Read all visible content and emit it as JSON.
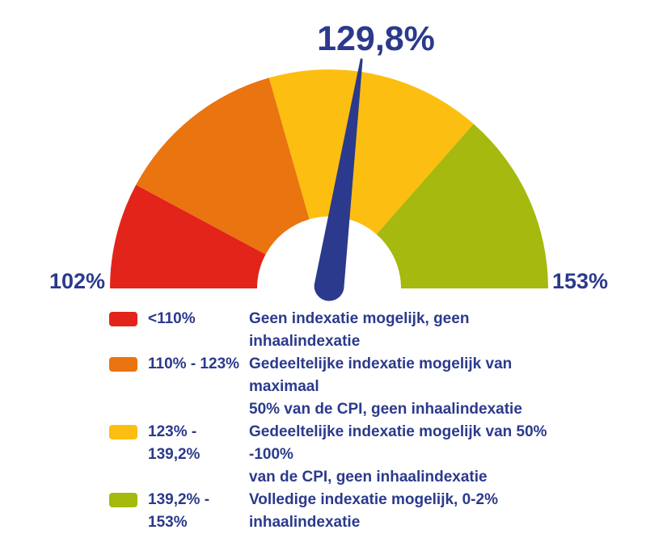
{
  "chart_data": {
    "type": "gauge",
    "title": "129,8%",
    "value": 129.8,
    "min": 102,
    "max": 153,
    "min_label": "102%",
    "max_label": "153%",
    "unit": "%",
    "text_color": "#2b3a8c",
    "needle_color": "#2b3a8c",
    "legend_position": "bottom",
    "segments": [
      {
        "name": "red",
        "from": 102,
        "to": 110,
        "color": "#e2241a",
        "label": "<110%",
        "description_lines": [
          "Geen indexatie mogelijk, geen inhaalindexatie"
        ]
      },
      {
        "name": "orange",
        "from": 110,
        "to": 123,
        "color": "#ea7410",
        "label": "110% - 123%",
        "description_lines": [
          "Gedeeltelijke indexatie mogelijk van maximaal",
          "50% van de CPI, geen inhaalindexatie"
        ]
      },
      {
        "name": "yellow",
        "from": 123,
        "to": 139.2,
        "color": "#fcbe10",
        "label": "123% - 139,2%",
        "description_lines": [
          "Gedeeltelijke indexatie mogelijk van 50% -100%",
          "van de CPI, geen inhaalindexatie"
        ]
      },
      {
        "name": "green",
        "from": 139.2,
        "to": 153,
        "color": "#a5b90e",
        "label": "139,2% - 153%",
        "description_lines": [
          "Volledige indexatie mogelijk, 0-2% inhaalindexatie"
        ]
      }
    ]
  }
}
